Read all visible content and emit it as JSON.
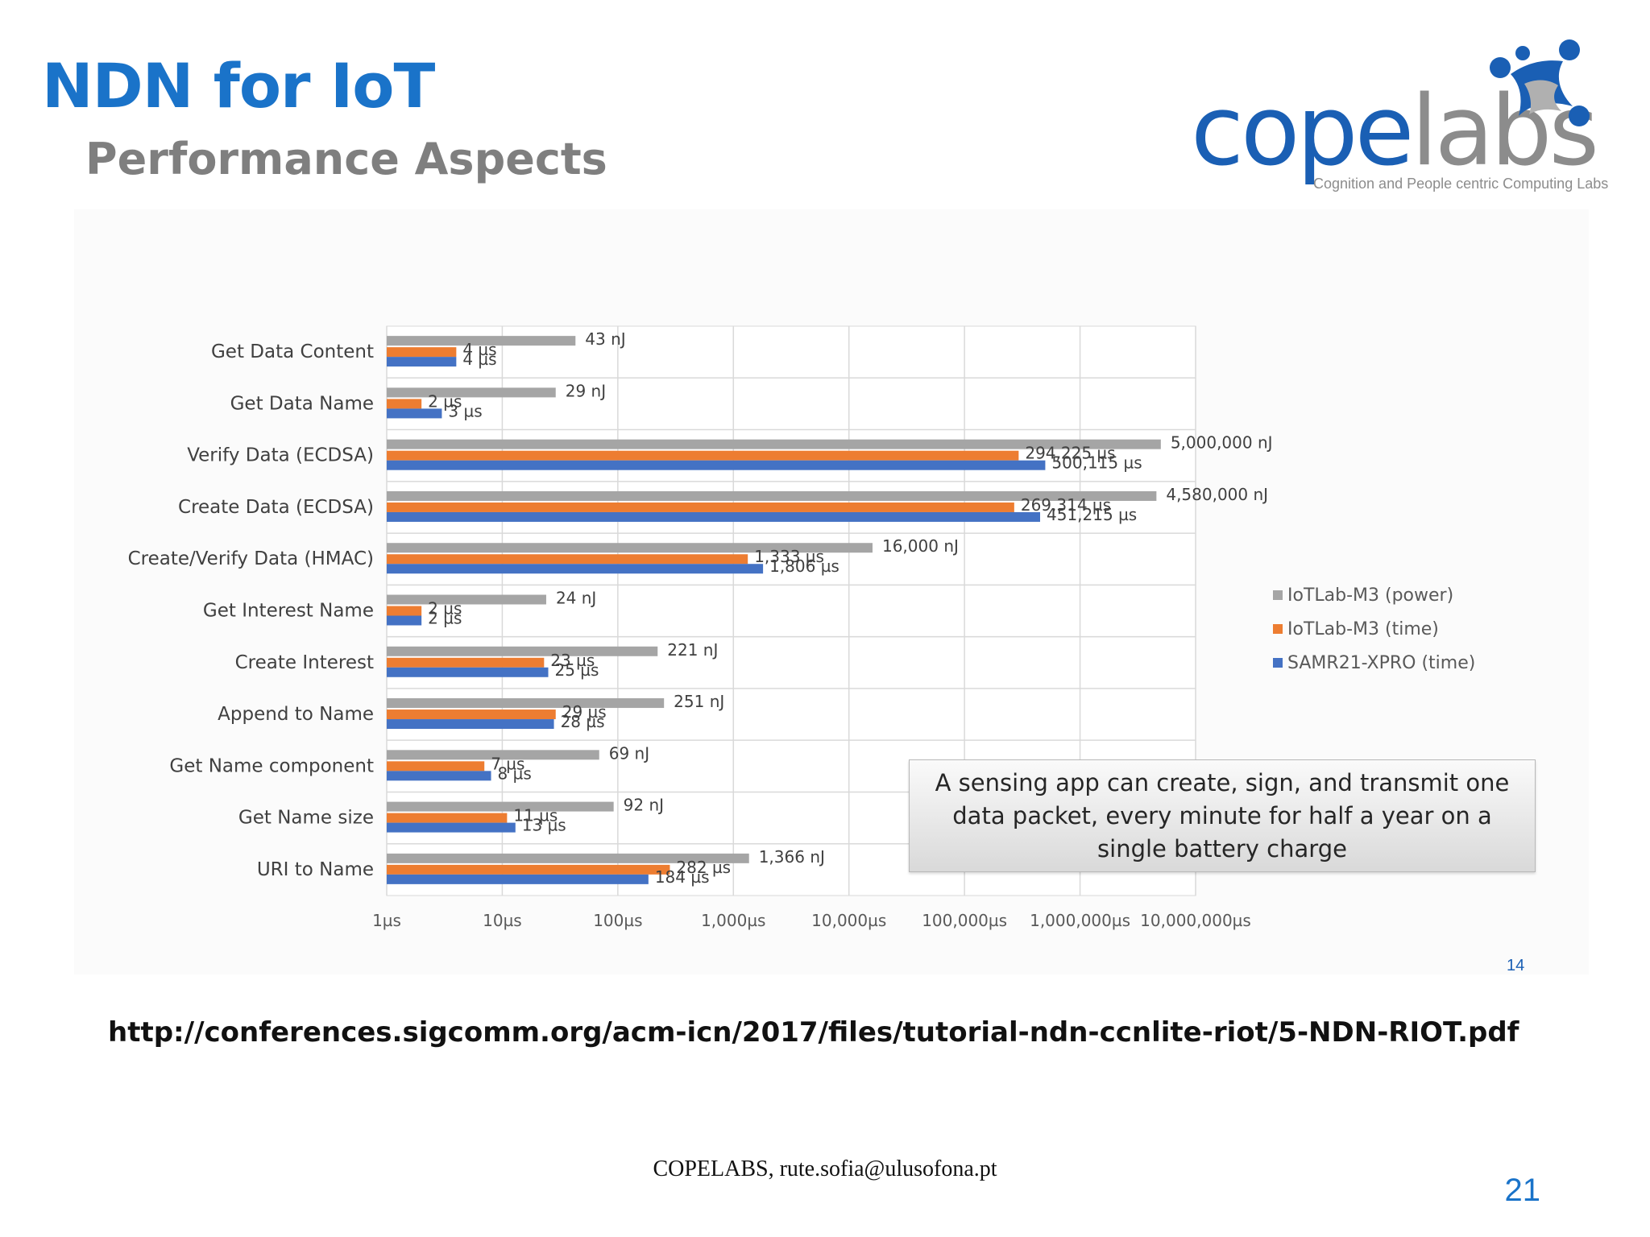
{
  "slide": {
    "title": "NDN for IoT",
    "subtitle": "Performance Aspects",
    "url": "http://conferences.sigcomm.org/acm-icn/2017/files/tutorial-ndn-ccnlite-riot/5-NDN-RIOT.pdf",
    "footer": "COPELABS, rute.sofia@ulusofona.pt",
    "page_number": "21",
    "corner_mark": "14"
  },
  "logo": {
    "word_part1": "cope",
    "word_part2": "labs",
    "tagline": "Cognition and People centric Computing Labs"
  },
  "callout": {
    "text": "A sensing app can create, sign, and transmit one data packet, every minute for half a year on a single battery charge"
  },
  "chart_data": {
    "type": "bar",
    "orientation": "horizontal",
    "x_scale": "log",
    "xlim": [
      1,
      10000000
    ],
    "x_tick_labels": [
      "1µs",
      "10µs",
      "100µs",
      "1,000µs",
      "10,000µs",
      "100,000µs",
      "1,000,000µs",
      "10,000,000µs"
    ],
    "grid": true,
    "legend_position": "right",
    "categories": [
      "Get Data Content",
      "Get Data Name",
      "Verify Data (ECDSA)",
      "Create Data (ECDSA)",
      "Create/Verify Data (HMAC)",
      "Get Interest Name",
      "Create Interest",
      "Append to Name",
      "Get Name component",
      "Get Name size",
      "URI to Name"
    ],
    "series": [
      {
        "name": "IoTLab-M3 (power)",
        "color": "#a5a5a5",
        "values": [
          43,
          29,
          5000000,
          4580000,
          16000,
          24,
          221,
          251,
          69,
          92,
          1366
        ],
        "labels": [
          "43 nJ",
          "29 nJ",
          "5,000,000 nJ",
          "4,580,000 nJ",
          "16,000 nJ",
          "24 nJ",
          "221 nJ",
          "251 nJ",
          "69 nJ",
          "92 nJ",
          "1,366 nJ"
        ]
      },
      {
        "name": "IoTLab-M3 (time)",
        "color": "#ed7d31",
        "values": [
          4,
          2,
          294225,
          269314,
          1333,
          2,
          23,
          29,
          7,
          11,
          282
        ],
        "labels": [
          "4 µs",
          "2 µs",
          "294,225 µs",
          "269,314 µs",
          "1,333 µs",
          "2 µs",
          "23 µs",
          "29 µs",
          "7 µs",
          "11 µs",
          "282 µs"
        ]
      },
      {
        "name": "SAMR21-XPRO (time)",
        "color": "#4472c4",
        "values": [
          4,
          3,
          500115,
          451215,
          1806,
          2,
          25,
          28,
          8,
          13,
          184
        ],
        "labels": [
          "4 µs",
          "3 µs",
          "500,115 µs",
          "451,215 µs",
          "1,806 µs",
          "2 µs",
          "25 µs",
          "28 µs",
          "8 µs",
          "13 µs",
          "184 µs"
        ]
      }
    ]
  }
}
